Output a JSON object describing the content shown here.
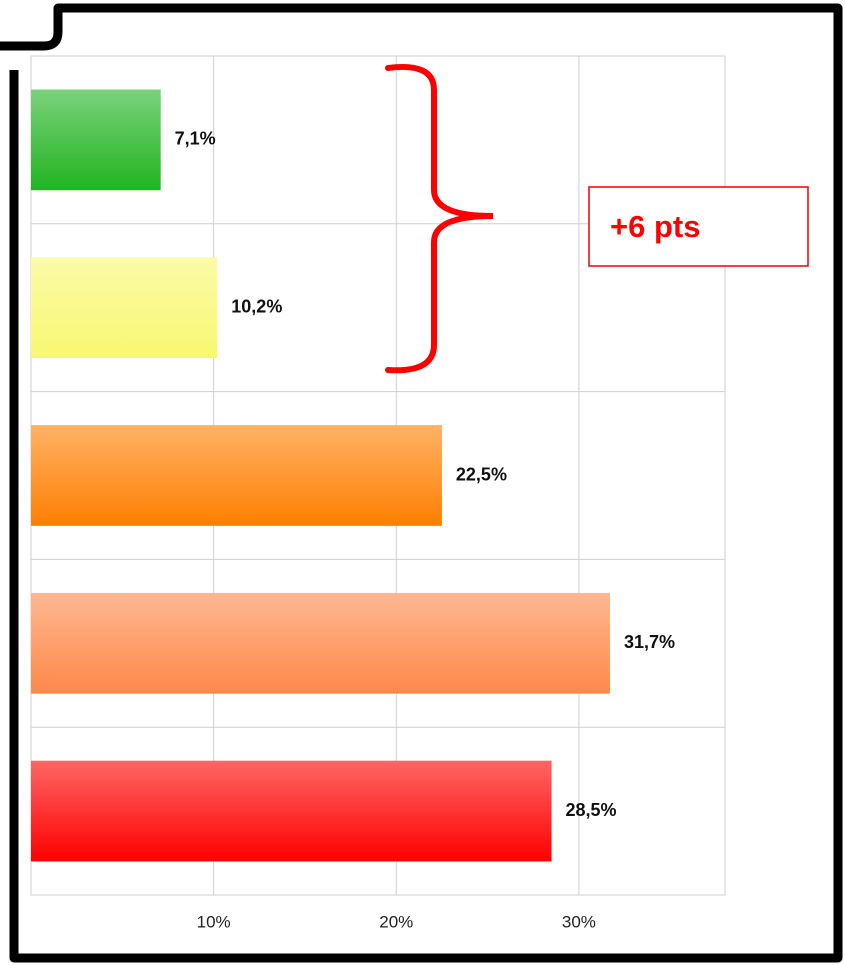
{
  "chart_data": {
    "type": "barh",
    "categories": [
      null,
      null,
      null,
      null,
      null
    ],
    "values": [
      7.1,
      10.2,
      22.5,
      31.7,
      28.5
    ],
    "value_labels": [
      "7,1%",
      "10,2%",
      "22,5%",
      "31,7%",
      "28,5%"
    ],
    "colors": [
      "#22b422",
      "#f8f870",
      "#ff7f00",
      "#ff8848",
      "#ff0000"
    ],
    "xlim": [
      0,
      38
    ],
    "xticks": [
      {
        "value": 10,
        "label": "10%"
      },
      {
        "value": 20,
        "label": "20%"
      },
      {
        "value": 30,
        "label": "30%"
      }
    ],
    "grid": true,
    "annotation": "+6 pts"
  }
}
